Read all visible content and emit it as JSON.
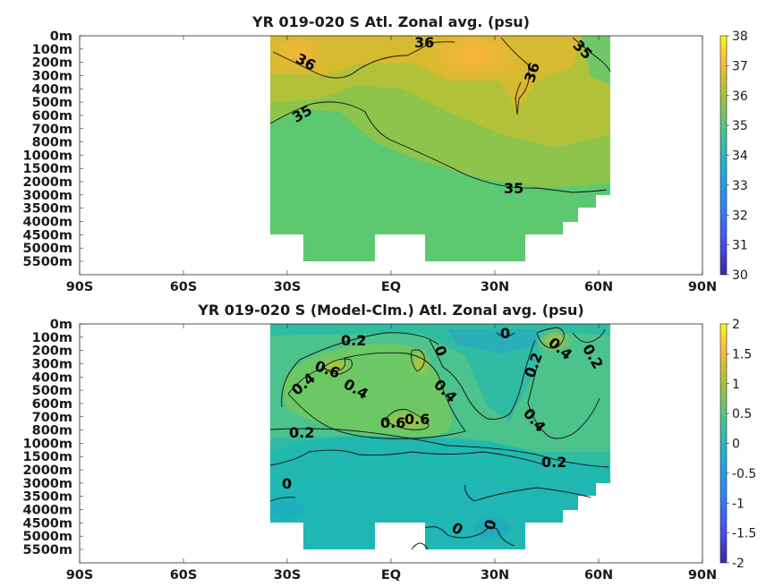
{
  "chart_data": [
    {
      "type": "heatmap",
      "title": "YR 019-020 S Atl. Zonal avg. (psu)",
      "x_tick_labels": [
        "90S",
        "60S",
        "30S",
        "EQ",
        "30N",
        "60N",
        "90N"
      ],
      "x_ticks": [
        -90,
        -60,
        -30,
        0,
        30,
        60,
        90
      ],
      "xlim": [
        -90,
        90
      ],
      "y_tick_labels": [
        "0m",
        "100m",
        "200m",
        "300m",
        "400m",
        "500m",
        "600m",
        "700m",
        "800m",
        "1000m",
        "1500m",
        "2000m",
        "3000m",
        "3500m",
        "4000m",
        "4500m",
        "5000m",
        "5500m"
      ],
      "colorbar": {
        "min": 30,
        "max": 38,
        "tick_labels": [
          "30",
          "31",
          "32",
          "33",
          "34",
          "35",
          "36",
          "37",
          "38"
        ]
      },
      "contour_labels": [
        "36",
        "36",
        "36",
        "35",
        "35",
        "35"
      ],
      "colors": {
        "dominant": "#5cc870",
        "high": "#f1b83a",
        "mid": "#c9bf3a"
      }
    },
    {
      "type": "heatmap",
      "title": "YR 019-020 S (Model-Clm.) Atl. Zonal avg. (psu)",
      "x_tick_labels": [
        "90S",
        "60S",
        "30S",
        "EQ",
        "30N",
        "60N",
        "90N"
      ],
      "x_ticks": [
        -90,
        -60,
        -30,
        0,
        30,
        60,
        90
      ],
      "xlim": [
        -90,
        90
      ],
      "y_tick_labels": [
        "0m",
        "100m",
        "200m",
        "300m",
        "400m",
        "500m",
        "600m",
        "700m",
        "800m",
        "1000m",
        "1500m",
        "2000m",
        "3000m",
        "3500m",
        "4000m",
        "4500m",
        "5000m",
        "5500m"
      ],
      "colorbar": {
        "min": -2,
        "max": 2,
        "tick_labels": [
          "-2",
          "-1.5",
          "-1",
          "-0.5",
          "0",
          "0.5",
          "1",
          "1.5",
          "2"
        ]
      },
      "contour_labels": [
        "0.2",
        "0.4",
        "0.6",
        "0.4",
        "0.4",
        "0.6",
        "0.6",
        "0.2",
        "0.2",
        "0",
        "0",
        "0.2",
        "0.4",
        "0.2",
        "0.4",
        "0",
        "0",
        "0"
      ],
      "colors": {
        "dominant": "#21b8b0",
        "positive": "#6cc864",
        "negative": "#1e9bbf"
      }
    }
  ]
}
